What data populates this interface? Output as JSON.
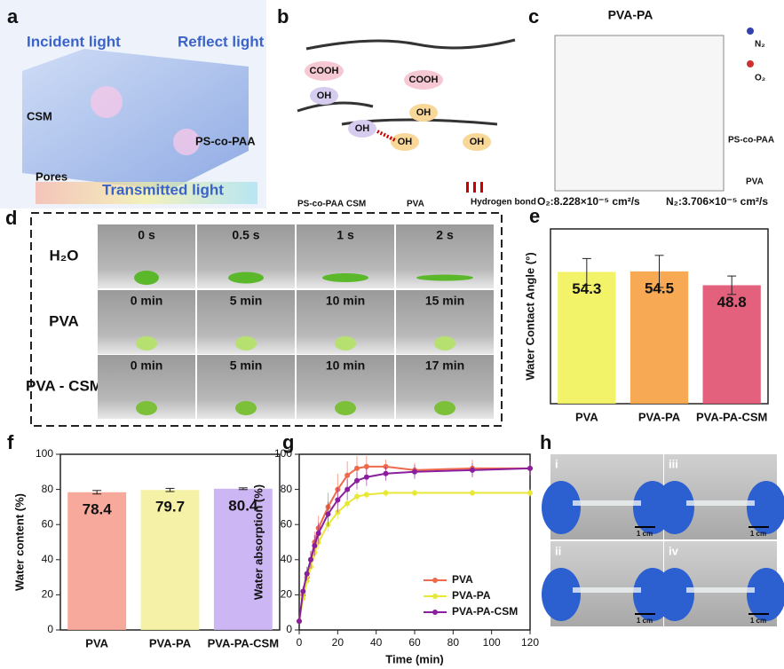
{
  "panel_a": {
    "label": "a",
    "incident": "Incident light",
    "reflect": "Reflect light",
    "csm": "CSM",
    "pscopaa": "PS-co-PAA",
    "pores": "Pores",
    "transmitted": "Transmitted light"
  },
  "panel_b": {
    "label": "b",
    "groups": [
      "COOH",
      "OH",
      "COOH",
      "OH",
      "OH",
      "OH",
      "OH"
    ],
    "legend": [
      "PS-co-PAA",
      "CSM",
      "PVA",
      "Hydrogen bond"
    ]
  },
  "panel_c": {
    "label": "c",
    "title": "PVA-PA",
    "legend": [
      "N₂",
      "O₂",
      "PS-co-PAA",
      "PVA"
    ],
    "o2": "O₂:8.228×10⁻⁵ cm²/s",
    "n2": "N₂:3.706×10⁻⁵ cm²/s"
  },
  "panel_d": {
    "label": "d",
    "rows": [
      {
        "name": "H₂O",
        "times": [
          "0 s",
          "0.5 s",
          "1 s",
          "2 s"
        ]
      },
      {
        "name": "PVA",
        "times": [
          "0 min",
          "5 min",
          "10 min",
          "15 min"
        ]
      },
      {
        "name": "PVA - CSM",
        "times": [
          "0 min",
          "5 min",
          "10 min",
          "17 min"
        ]
      }
    ]
  },
  "panel_h": {
    "label": "h",
    "photos": [
      "i",
      "iii",
      "ii",
      "iv"
    ],
    "scale": "1 cm"
  },
  "chart_data": [
    {
      "type": "bar",
      "label": "e",
      "ylabel": "Water Contact Angle (°)",
      "categories": [
        "PVA",
        "PVA-PA",
        "PVA-PA-CSM"
      ],
      "values": [
        54.3,
        54.5,
        48.8
      ],
      "errors": [
        5.5,
        6.6,
        3.8
      ],
      "colors": [
        "#f2f25a",
        "#f6a040",
        "#e0506e"
      ],
      "ylim": [
        0,
        72
      ]
    },
    {
      "type": "bar",
      "label": "f",
      "ylabel": "Water content (%)",
      "categories": [
        "PVA",
        "PVA-PA",
        "PVA-PA-CSM"
      ],
      "values": [
        78.4,
        79.7,
        80.4
      ],
      "errors": [
        1.0,
        0.9,
        0.5
      ],
      "colors": [
        "#f6a090",
        "#f4f09c",
        "#c6aef2"
      ],
      "ylim": [
        0,
        100
      ],
      "yticks": [
        0,
        20,
        40,
        60,
        80,
        100
      ]
    },
    {
      "type": "line",
      "label": "g",
      "xlabel": "Time (min)",
      "ylabel": "Water absorption (%)",
      "x": [
        0,
        2,
        4,
        6,
        8,
        10,
        15,
        20,
        25,
        30,
        35,
        45,
        60,
        90,
        120
      ],
      "series": [
        {
          "name": "PVA",
          "color": "#ef6a4a",
          "values": [
            5,
            20,
            30,
            40,
            50,
            58,
            70,
            80,
            88,
            92,
            93,
            93,
            91,
            92,
            92
          ],
          "errors": [
            1,
            3,
            4,
            5,
            6,
            7,
            8,
            9,
            8,
            7,
            6,
            4,
            4,
            5,
            4
          ]
        },
        {
          "name": "PVA-PA",
          "color": "#e8e838",
          "values": [
            5,
            18,
            28,
            36,
            44,
            50,
            60,
            67,
            72,
            76,
            77,
            78,
            78,
            78,
            78
          ],
          "errors": [
            1,
            2,
            3,
            3,
            4,
            4,
            4,
            4,
            3,
            3,
            2,
            2,
            2,
            2,
            2
          ]
        },
        {
          "name": "PVA-PA-CSM",
          "color": "#8a1e9e",
          "values": [
            5,
            22,
            32,
            40,
            48,
            55,
            66,
            74,
            80,
            85,
            87,
            89,
            90,
            91,
            92
          ],
          "errors": [
            1,
            3,
            4,
            5,
            6,
            6,
            7,
            7,
            6,
            5,
            5,
            4,
            4,
            4,
            4
          ]
        }
      ],
      "xlim": [
        0,
        120
      ],
      "xticks": [
        0,
        20,
        40,
        60,
        80,
        100,
        120
      ],
      "ylim": [
        0,
        100
      ],
      "yticks": [
        0,
        20,
        40,
        60,
        80,
        100
      ],
      "legend": "lower right"
    }
  ]
}
